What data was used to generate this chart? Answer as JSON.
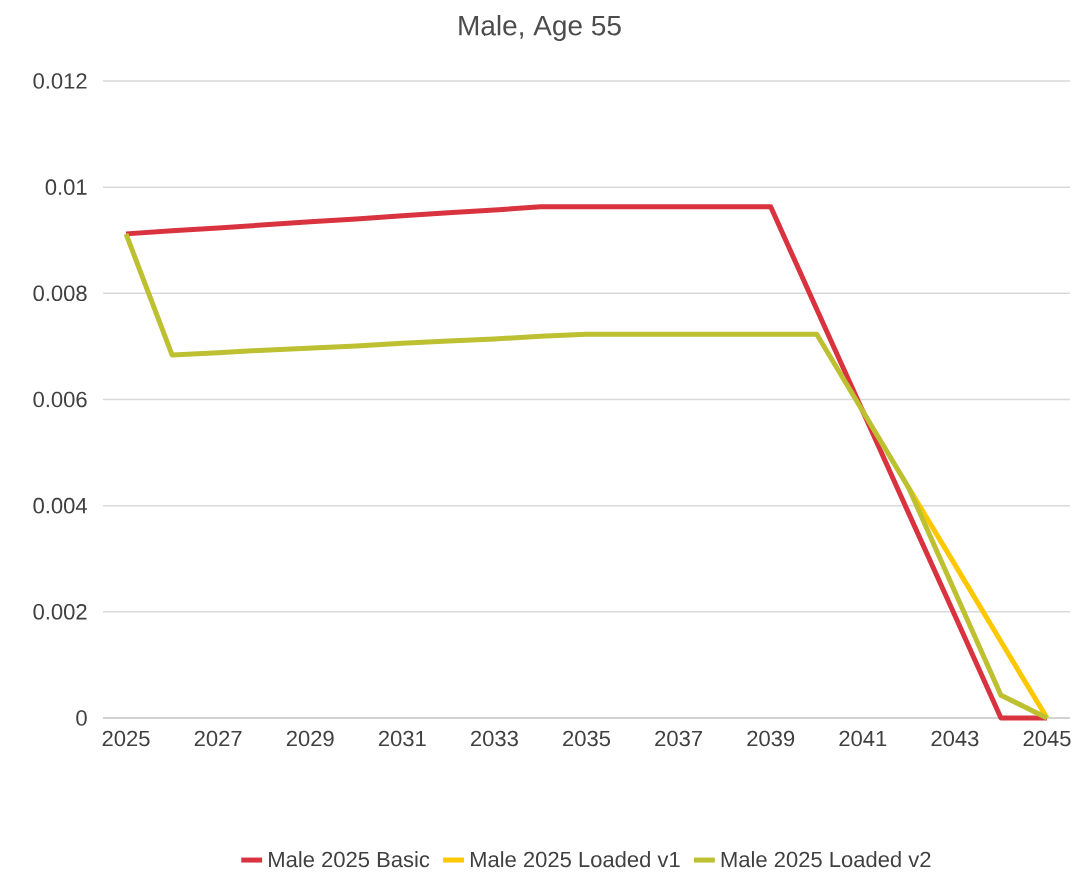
{
  "chart_data": {
    "type": "line",
    "title": "Male, Age 55",
    "x": [
      2025,
      2026,
      2027,
      2028,
      2029,
      2030,
      2031,
      2032,
      2033,
      2034,
      2035,
      2036,
      2037,
      2038,
      2039,
      2040,
      2041,
      2042,
      2043,
      2044,
      2045
    ],
    "series": [
      {
        "name": "Male 2025 Basic",
        "color": "#d9333f",
        "values": [
          0.00912,
          0.00918,
          0.00923,
          0.00929,
          0.00935,
          0.0094,
          0.00946,
          0.00952,
          0.00957,
          0.00963,
          0.00963,
          0.00963,
          0.00963,
          0.00963,
          0.00963,
          0.0077,
          0.00578,
          0.00385,
          0.00193,
          0,
          0
        ]
      },
      {
        "name": "Male 2025 Loaded v1",
        "color": "#fdc800",
        "values": [
          null,
          null,
          null,
          null,
          null,
          null,
          null,
          null,
          null,
          null,
          null,
          null,
          null,
          null,
          null,
          null,
          null,
          0.00433,
          0.00289,
          0.00144,
          0
        ]
      },
      {
        "name": "Male 2025 Loaded v2",
        "color": "#bdc031",
        "values": [
          0.00912,
          0.00684,
          0.00688,
          0.00693,
          0.00697,
          0.00701,
          0.00706,
          0.0071,
          0.00714,
          0.00719,
          0.00723,
          0.00723,
          0.00723,
          0.00723,
          0.00723,
          0.00723,
          0.00578,
          0.00433,
          0.00238,
          0.00043,
          0
        ]
      }
    ],
    "xlim": [
      2024.5,
      2045.5
    ],
    "xticks": [
      2025,
      2027,
      2029,
      2031,
      2033,
      2035,
      2037,
      2039,
      2041,
      2043,
      2045
    ],
    "ylim": [
      0,
      0.012
    ],
    "yticks": [
      0,
      0.002,
      0.004,
      0.006,
      0.008,
      0.01,
      0.012
    ],
    "grid": "y",
    "legend": "bottom",
    "marker": "none",
    "line_style": "solid"
  }
}
